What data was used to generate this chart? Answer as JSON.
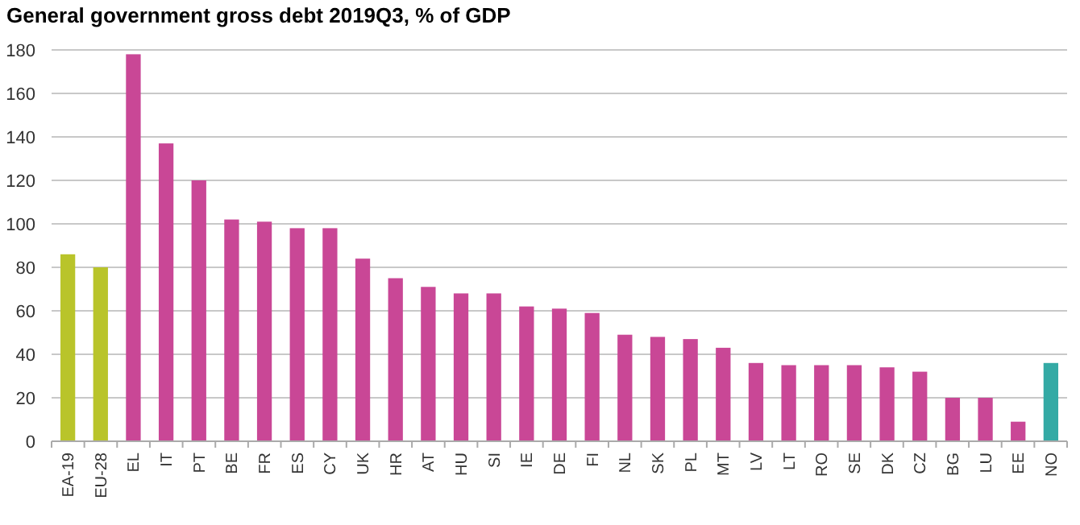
{
  "chart_data": {
    "type": "bar",
    "title": "General government gross debt 2019Q3, % of GDP",
    "categories": [
      "EA-19",
      "EU-28",
      "EL",
      "IT",
      "PT",
      "BE",
      "FR",
      "ES",
      "CY",
      "UK",
      "HR",
      "AT",
      "HU",
      "SI",
      "IE",
      "DE",
      "FI",
      "NL",
      "SK",
      "PL",
      "MT",
      "LV",
      "LT",
      "RO",
      "SE",
      "DK",
      "CZ",
      "BG",
      "LU",
      "EE",
      "NO"
    ],
    "values": [
      86,
      80,
      178,
      137,
      120,
      102,
      101,
      98,
      98,
      84,
      75,
      71,
      68,
      68,
      62,
      61,
      59,
      49,
      48,
      47,
      43,
      36,
      35,
      35,
      35,
      34,
      32,
      20,
      20,
      9,
      36
    ],
    "colors": [
      "#b9c42a",
      "#b9c42a",
      "#c94796",
      "#c94796",
      "#c94796",
      "#c94796",
      "#c94796",
      "#c94796",
      "#c94796",
      "#c94796",
      "#c94796",
      "#c94796",
      "#c94796",
      "#c94796",
      "#c94796",
      "#c94796",
      "#c94796",
      "#c94796",
      "#c94796",
      "#c94796",
      "#c94796",
      "#c94796",
      "#c94796",
      "#c94796",
      "#c94796",
      "#c94796",
      "#c94796",
      "#c94796",
      "#c94796",
      "#c94796",
      "#34aaa5"
    ],
    "ylim": [
      0,
      180
    ],
    "yticks": [
      0,
      20,
      40,
      60,
      80,
      100,
      120,
      140,
      160,
      180
    ],
    "grid": "y"
  }
}
